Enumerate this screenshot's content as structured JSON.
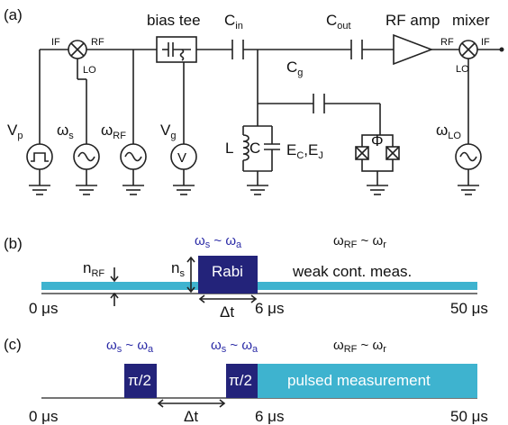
{
  "panels": {
    "a": {
      "label": "(a)",
      "top_labels": {
        "bias_tee": "bias tee",
        "c_in": "C",
        "c_in_sub": "in",
        "c_out": "C",
        "c_out_sub": "out",
        "rf_amp": "RF amp",
        "mixer": "mixer",
        "c_g": "C",
        "c_g_sub": "g"
      },
      "mixer_left": {
        "if": "IF",
        "rf": "RF",
        "lo": "LO"
      },
      "mixer_right": {
        "rf": "RF",
        "if": "IF",
        "lo": "LO"
      },
      "sources": {
        "vp": "V",
        "vp_sub": "p",
        "ws": "ω",
        "ws_sub": "s",
        "wrf": "ω",
        "wrf_sub": "RF",
        "vg": "V",
        "vg_sub": "g",
        "vg_meter": "V",
        "wlo": "ω",
        "wlo_sub": "LO"
      },
      "resonator": {
        "L": "L",
        "C": "C",
        "energies": "E",
        "ec_sub": "C",
        "comma": ",E",
        "ej_sub": "J"
      },
      "flux": "Φ"
    },
    "b": {
      "label": "(b)",
      "header_left": "ω",
      "header_left_s": "s",
      "header_tilde": " ~ ω",
      "header_left_a": "a",
      "header_right": "ω",
      "header_right_rf": "RF",
      "header_right_tilde": " ~ ω",
      "header_right_r": "r",
      "n_rf": "n",
      "n_rf_sub": "RF",
      "n_s": "n",
      "n_s_sub": "s",
      "pulse_label": "Rabi",
      "measurement_label": "weak cont. meas.",
      "dt": "Δt",
      "t0": "0 μs",
      "t6": "6 μs",
      "t50": "50 μs"
    },
    "c": {
      "label": "(c)",
      "header1": "ω",
      "header1_s": "s",
      "header1_tilde": " ~ ω",
      "header1_a": "a",
      "header2": "ω",
      "header2_s": "s",
      "header2_tilde": " ~ ω",
      "header2_a": "a",
      "header3": "ω",
      "header3_rf": "RF",
      "header3_tilde": " ~ ω",
      "header3_r": "r",
      "pulse1": "π/2",
      "pulse2": "π/2",
      "measurement_label": "pulsed measurement",
      "dt": "Δt",
      "t0": "0 μs",
      "t6": "6 μs",
      "t50": "50 μs"
    }
  },
  "colors": {
    "pulse": "#23237a",
    "measurement": "#3eb3cf",
    "header": "#2a2aa6"
  }
}
